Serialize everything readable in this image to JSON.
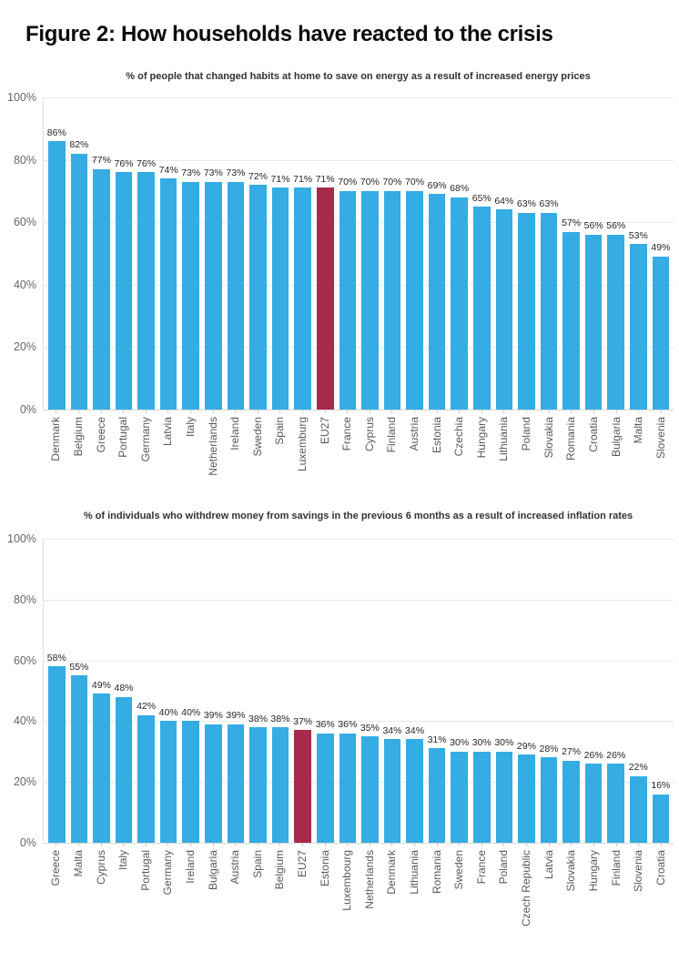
{
  "page": {
    "title": "Figure 2: How households have reacted to the crisis"
  },
  "colors": {
    "bar": "#35ACE3",
    "highlight": "#A82A4B",
    "grid": "#E9E9E9",
    "axis_text": "#666666",
    "value_text": "#262626"
  },
  "chart_data": [
    {
      "type": "bar",
      "title": "% of people that changed habits at home to save on energy as a result of increased energy prices",
      "categories": [
        "Denmark",
        "Belgium",
        "Greece",
        "Portugal",
        "Germany",
        "Latvia",
        "Italy",
        "Netherlands",
        "Ireland",
        "Sweden",
        "Spain",
        "Luxemburg",
        "EU27",
        "France",
        "Cyprus",
        "Finland",
        "Austria",
        "Estonia",
        "Czechia",
        "Hungary",
        "Lithuania",
        "Poland",
        "Slovakia",
        "Romania",
        "Croatia",
        "Bulgaria",
        "Malta",
        "Slovenia"
      ],
      "values": [
        86,
        82,
        77,
        76,
        76,
        74,
        73,
        73,
        73,
        72,
        71,
        71,
        71,
        70,
        70,
        70,
        70,
        69,
        68,
        65,
        64,
        63,
        63,
        57,
        56,
        56,
        53,
        49
      ],
      "value_label_suffix": "%",
      "highlight_category": "EU27",
      "ylim": [
        0,
        100
      ],
      "ytick_step": 20,
      "ytick_suffix": "%",
      "grid": "horizontal",
      "legend": "none"
    },
    {
      "type": "bar",
      "title": "% of individuals who withdrew money from savings in the previous 6 months as a result of increased inflation rates",
      "categories": [
        "Greece",
        "Malta",
        "Cyprus",
        "Italy",
        "Portugal",
        "Germany",
        "Ireland",
        "Bulgaria",
        "Austria",
        "Spain",
        "Belgium",
        "EU27",
        "Estonia",
        "Luxembourg",
        "Netherlands",
        "Denmark",
        "Lithuania",
        "Romania",
        "Sweden",
        "France",
        "Poland",
        "Czech Republic",
        "Latvia",
        "Slovakia",
        "Hungary",
        "Finland",
        "Slovenia",
        "Croatia"
      ],
      "values": [
        58,
        55,
        49,
        48,
        42,
        40,
        40,
        39,
        39,
        38,
        38,
        37,
        36,
        36,
        35,
        34,
        34,
        31,
        30,
        30,
        30,
        29,
        28,
        27,
        26,
        26,
        22,
        16
      ],
      "value_label_suffix": "%",
      "highlight_category": "EU27",
      "ylim": [
        0,
        100
      ],
      "ytick_step": 20,
      "ytick_suffix": "%",
      "grid": "horizontal",
      "legend": "none"
    }
  ]
}
